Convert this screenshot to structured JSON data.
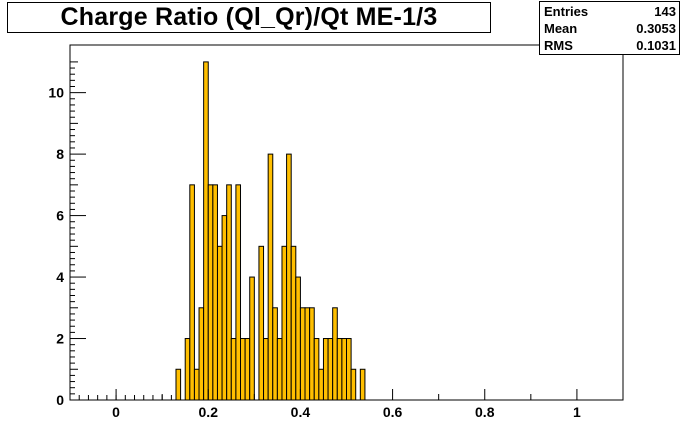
{
  "chart_data": {
    "type": "bar",
    "title": "Charge Ratio (Ql_Qr)/Qt ME-1/3",
    "xlim": [
      -0.1,
      1.1
    ],
    "ylim": [
      0,
      11.55
    ],
    "bin_width": 0.01,
    "x_ticks": [
      "0",
      "0.2",
      "0.4",
      "0.6",
      "0.8",
      "1"
    ],
    "y_ticks": [
      "0",
      "2",
      "4",
      "6",
      "8",
      "10"
    ],
    "bins": [
      {
        "x": 0.13,
        "count": 1
      },
      {
        "x": 0.15,
        "count": 2
      },
      {
        "x": 0.16,
        "count": 7
      },
      {
        "x": 0.17,
        "count": 1
      },
      {
        "x": 0.18,
        "count": 3
      },
      {
        "x": 0.19,
        "count": 11
      },
      {
        "x": 0.2,
        "count": 7
      },
      {
        "x": 0.21,
        "count": 7
      },
      {
        "x": 0.22,
        "count": 5
      },
      {
        "x": 0.23,
        "count": 6
      },
      {
        "x": 0.24,
        "count": 7
      },
      {
        "x": 0.25,
        "count": 2
      },
      {
        "x": 0.26,
        "count": 7
      },
      {
        "x": 0.27,
        "count": 2
      },
      {
        "x": 0.28,
        "count": 2
      },
      {
        "x": 0.29,
        "count": 4
      },
      {
        "x": 0.31,
        "count": 5
      },
      {
        "x": 0.32,
        "count": 2
      },
      {
        "x": 0.33,
        "count": 8
      },
      {
        "x": 0.34,
        "count": 3
      },
      {
        "x": 0.35,
        "count": 2
      },
      {
        "x": 0.36,
        "count": 5
      },
      {
        "x": 0.37,
        "count": 8
      },
      {
        "x": 0.38,
        "count": 5
      },
      {
        "x": 0.39,
        "count": 4
      },
      {
        "x": 0.4,
        "count": 3
      },
      {
        "x": 0.41,
        "count": 3
      },
      {
        "x": 0.42,
        "count": 3
      },
      {
        "x": 0.43,
        "count": 2
      },
      {
        "x": 0.44,
        "count": 1
      },
      {
        "x": 0.45,
        "count": 2
      },
      {
        "x": 0.46,
        "count": 2
      },
      {
        "x": 0.47,
        "count": 3
      },
      {
        "x": 0.48,
        "count": 2
      },
      {
        "x": 0.49,
        "count": 2
      },
      {
        "x": 0.5,
        "count": 2
      },
      {
        "x": 0.51,
        "count": 1
      },
      {
        "x": 0.53,
        "count": 1
      }
    ],
    "stats": {
      "entries_label": "Entries",
      "entries": "143",
      "mean_label": "Mean",
      "mean": "0.3053",
      "rms_label": "RMS",
      "rms": "0.1031"
    },
    "fill_color": "#ffbf00",
    "line_color": "#000000",
    "grid": false,
    "legend": "top-right stats box"
  }
}
